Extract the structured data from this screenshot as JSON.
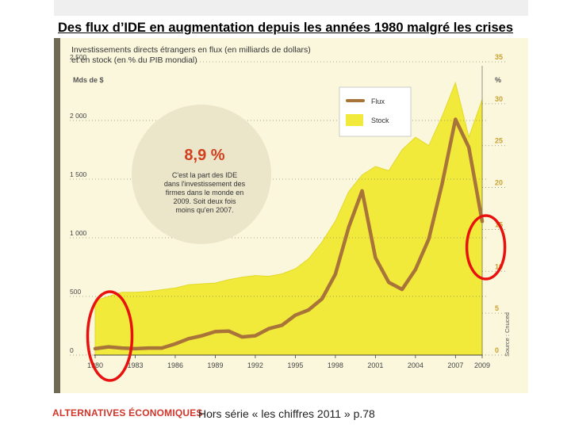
{
  "slide": {
    "title": "Des flux d’IDE en augmentation depuis les années 1980 malgré les crises",
    "logo": "ALTERNATIVES ÉCONOMIQUES",
    "source": "Hors série « les chiffres 2011 » p.78"
  },
  "chart_data": {
    "type": "area",
    "title": "Investissements directs étrangers en flux (en milliards de dollars) et en stock (en % du PIB mondial)",
    "ylabel_left": "Mds de $",
    "ylabel_right": "%",
    "y_left_ticks": [
      "0",
      "500",
      "1 000",
      "1 500",
      "2 000",
      "2 500"
    ],
    "y_right_ticks": [
      "0",
      "5",
      "10",
      "15",
      "20",
      "25",
      "30",
      "35"
    ],
    "ylim_left": [
      0,
      2500
    ],
    "ylim_right": [
      0,
      35
    ],
    "x_ticks": [
      "1980",
      "1983",
      "1986",
      "1989",
      "1992",
      "1995",
      "1998",
      "2001",
      "2004",
      "2007",
      "2009"
    ],
    "xlim": [
      1980,
      2009
    ],
    "grid": true,
    "legend_position": "top-right",
    "series": [
      {
        "name": "Flux",
        "axis": "left",
        "color": "#a8743a",
        "x": [
          1980,
          1981,
          1982,
          1983,
          1984,
          1985,
          1986,
          1987,
          1988,
          1989,
          1990,
          1991,
          1992,
          1993,
          1994,
          1995,
          1996,
          1997,
          1998,
          1999,
          2000,
          2001,
          2002,
          2003,
          2004,
          2005,
          2006,
          2007,
          2008,
          2009
        ],
        "values": [
          55,
          70,
          60,
          55,
          60,
          60,
          95,
          140,
          165,
          200,
          205,
          155,
          165,
          225,
          255,
          340,
          385,
          480,
          690,
          1090,
          1400,
          830,
          620,
          560,
          730,
          990,
          1460,
          2010,
          1770,
          1140
        ]
      },
      {
        "name": "Stock",
        "axis": "right",
        "color": "#f2ea3a",
        "x": [
          1980,
          1981,
          1982,
          1983,
          1984,
          1985,
          1986,
          1987,
          1988,
          1989,
          1990,
          1991,
          1992,
          1993,
          1994,
          1995,
          1996,
          1997,
          1998,
          1999,
          2000,
          2001,
          2002,
          2003,
          2004,
          2005,
          2006,
          2007,
          2008,
          2009
        ],
        "values": [
          6.5,
          7.0,
          7.5,
          7.5,
          7.6,
          7.8,
          8.0,
          8.4,
          8.5,
          8.6,
          9.0,
          9.3,
          9.5,
          9.4,
          9.7,
          10.3,
          11.5,
          13.5,
          16.0,
          19.5,
          21.5,
          22.5,
          22.0,
          24.5,
          26.0,
          25.0,
          28.5,
          32.5,
          26.0,
          30.5
        ]
      }
    ],
    "annotation": {
      "value": "8,9 %",
      "text": "C'est la part des IDE dans l'investissement des firmes dans le monde en 2009. Soit deux fois moins qu'en 2007."
    },
    "source_label": "Source : Cnuced",
    "highlight_color": "#e8110e"
  }
}
